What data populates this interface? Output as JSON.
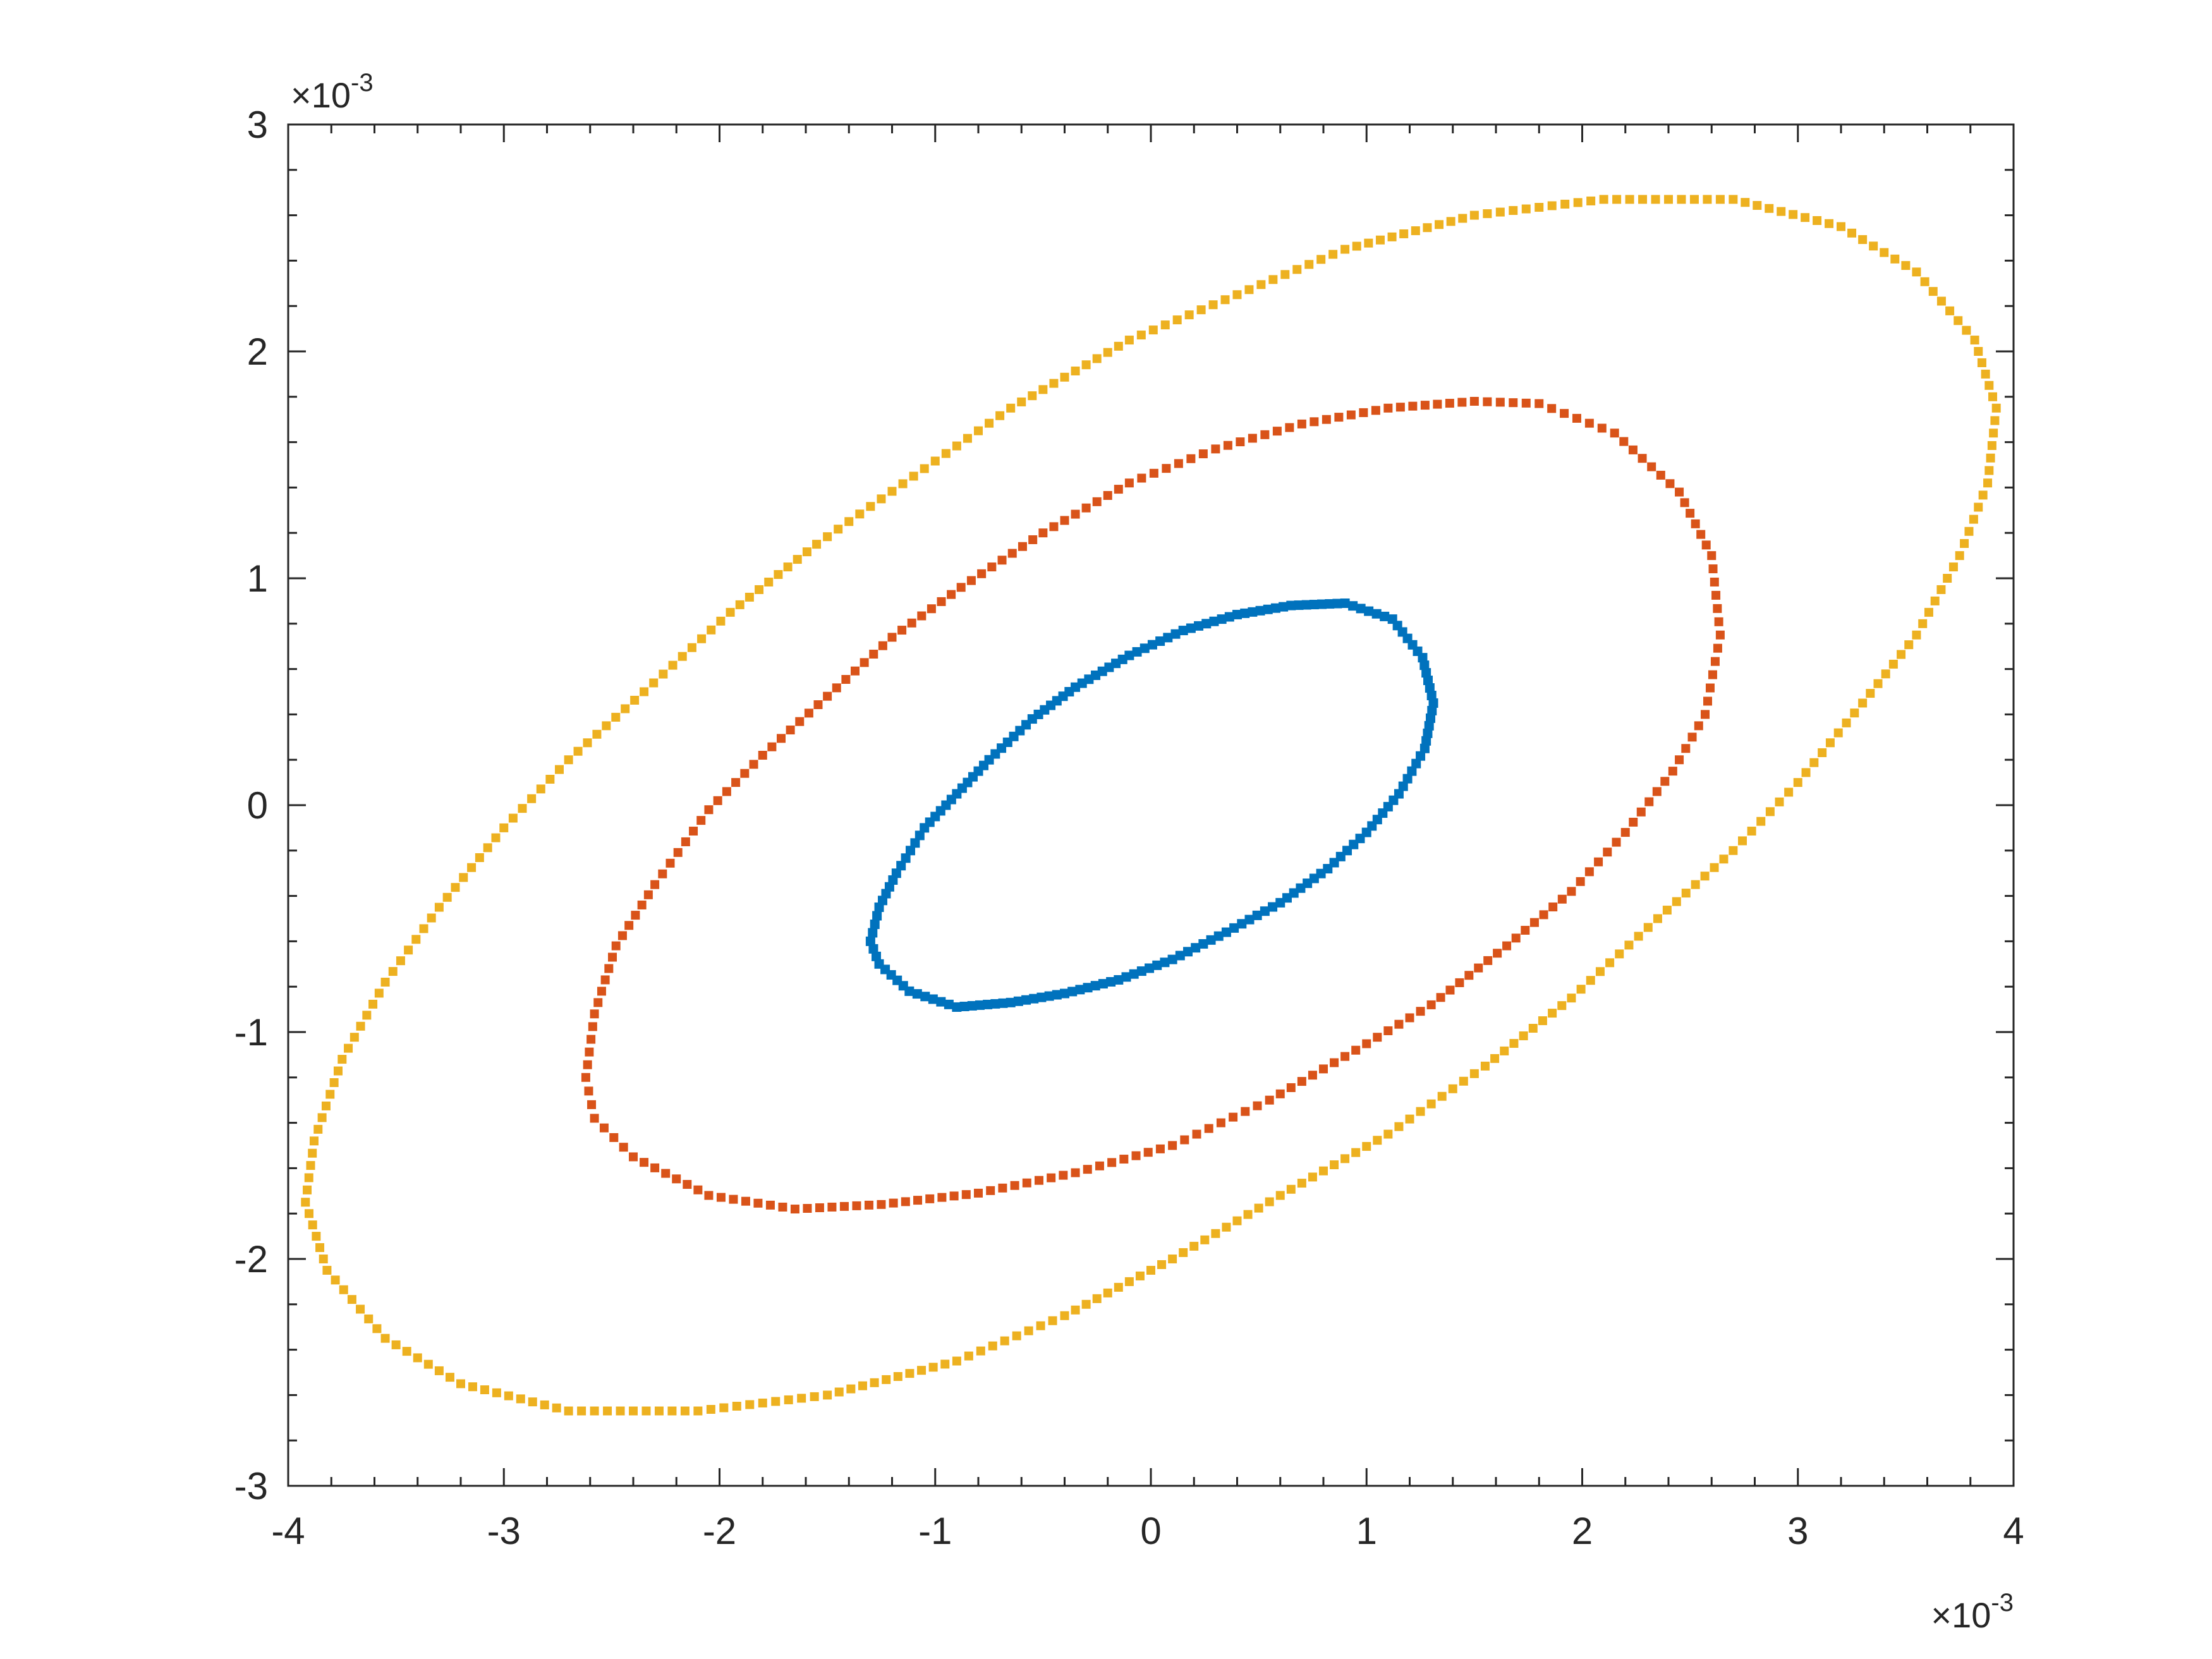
{
  "chart_data": {
    "type": "scatter",
    "title": "",
    "xlabel": "",
    "ylabel": "",
    "x_exponent_label": "×10-3",
    "y_exponent_label": "×10-3",
    "xlim": [
      -4,
      4
    ],
    "ylim": [
      -3,
      3
    ],
    "x_ticks": [
      "-4",
      "-3",
      "-2",
      "-1",
      "0",
      "1",
      "2",
      "3",
      "4"
    ],
    "y_ticks": [
      "-3",
      "-2",
      "-1",
      "0",
      "1",
      "2",
      "3"
    ],
    "grid": false,
    "legend": "none",
    "marker": "square",
    "note": "x and y values are in units of 10^-3, as shown by the axis multipliers",
    "series": [
      {
        "color": "#0072BD",
        "points": [
          [
            -1.3,
            -0.6
          ],
          [
            -1.26,
            -0.45
          ],
          [
            -1.18,
            -0.3
          ],
          [
            -1.05,
            -0.1
          ],
          [
            -0.9,
            0.05
          ],
          [
            -0.75,
            0.2
          ],
          [
            -0.55,
            0.38
          ],
          [
            -0.35,
            0.52
          ],
          [
            -0.1,
            0.66
          ],
          [
            0.15,
            0.77
          ],
          [
            0.4,
            0.84
          ],
          [
            0.65,
            0.88
          ],
          [
            0.9,
            0.89
          ],
          [
            1.12,
            0.82
          ],
          [
            1.26,
            0.65
          ],
          [
            1.31,
            0.45
          ],
          [
            1.27,
            0.25
          ],
          [
            1.15,
            0.05
          ],
          [
            1.0,
            -0.12
          ],
          [
            0.82,
            -0.28
          ],
          [
            0.6,
            -0.43
          ],
          [
            0.35,
            -0.56
          ],
          [
            0.1,
            -0.68
          ],
          [
            -0.15,
            -0.77
          ],
          [
            -0.4,
            -0.83
          ],
          [
            -0.65,
            -0.87
          ],
          [
            -0.9,
            -0.89
          ],
          [
            -1.12,
            -0.82
          ],
          [
            -1.26,
            -0.7
          ],
          [
            -1.3,
            -0.6
          ]
        ]
      },
      {
        "color": "#D95319",
        "points": [
          [
            -2.62,
            -1.2
          ],
          [
            -2.58,
            -0.92
          ],
          [
            -2.48,
            -0.62
          ],
          [
            -2.3,
            -0.35
          ],
          [
            -2.05,
            -0.02
          ],
          [
            -1.8,
            0.22
          ],
          [
            -1.5,
            0.48
          ],
          [
            -1.2,
            0.74
          ],
          [
            -0.88,
            0.96
          ],
          [
            -0.5,
            1.2
          ],
          [
            -0.1,
            1.42
          ],
          [
            0.3,
            1.57
          ],
          [
            0.7,
            1.68
          ],
          [
            1.1,
            1.75
          ],
          [
            1.5,
            1.78
          ],
          [
            1.8,
            1.77
          ],
          [
            2.15,
            1.64
          ],
          [
            2.45,
            1.38
          ],
          [
            2.6,
            1.1
          ],
          [
            2.64,
            0.75
          ],
          [
            2.57,
            0.4
          ],
          [
            2.42,
            0.15
          ],
          [
            2.2,
            -0.12
          ],
          [
            1.95,
            -0.38
          ],
          [
            1.65,
            -0.62
          ],
          [
            1.3,
            -0.88
          ],
          [
            0.95,
            -1.08
          ],
          [
            0.55,
            -1.3
          ],
          [
            0.1,
            -1.5
          ],
          [
            -0.35,
            -1.62
          ],
          [
            -0.8,
            -1.71
          ],
          [
            -1.25,
            -1.76
          ],
          [
            -1.65,
            -1.78
          ],
          [
            -2.05,
            -1.72
          ],
          [
            -2.4,
            -1.55
          ],
          [
            -2.58,
            -1.38
          ],
          [
            -2.62,
            -1.2
          ]
        ]
      },
      {
        "color": "#EDB120",
        "points": [
          [
            -3.92,
            -1.75
          ],
          [
            -3.88,
            -1.48
          ],
          [
            -3.75,
            -1.12
          ],
          [
            -3.55,
            -0.78
          ],
          [
            -3.3,
            -0.45
          ],
          [
            -3.0,
            -0.1
          ],
          [
            -2.7,
            0.2
          ],
          [
            -2.35,
            0.5
          ],
          [
            -1.95,
            0.85
          ],
          [
            -1.55,
            1.15
          ],
          [
            -1.1,
            1.45
          ],
          [
            -0.65,
            1.75
          ],
          [
            -0.1,
            2.05
          ],
          [
            0.4,
            2.25
          ],
          [
            0.9,
            2.45
          ],
          [
            1.5,
            2.6
          ],
          [
            2.1,
            2.67
          ],
          [
            2.7,
            2.67
          ],
          [
            3.2,
            2.55
          ],
          [
            3.55,
            2.35
          ],
          [
            3.82,
            2.05
          ],
          [
            3.92,
            1.75
          ],
          [
            3.88,
            1.42
          ],
          [
            3.75,
            1.1
          ],
          [
            3.55,
            0.75
          ],
          [
            3.3,
            0.45
          ],
          [
            3.0,
            0.1
          ],
          [
            2.7,
            -0.2
          ],
          [
            2.35,
            -0.5
          ],
          [
            1.95,
            -0.85
          ],
          [
            1.55,
            -1.15
          ],
          [
            1.1,
            -1.45
          ],
          [
            0.6,
            -1.72
          ],
          [
            0.1,
            -2.0
          ],
          [
            -0.4,
            -2.25
          ],
          [
            -0.9,
            -2.45
          ],
          [
            -1.5,
            -2.6
          ],
          [
            -2.1,
            -2.67
          ],
          [
            -2.7,
            -2.67
          ],
          [
            -3.2,
            -2.55
          ],
          [
            -3.55,
            -2.35
          ],
          [
            -3.82,
            -2.05
          ],
          [
            -3.92,
            -1.75
          ]
        ]
      }
    ]
  }
}
